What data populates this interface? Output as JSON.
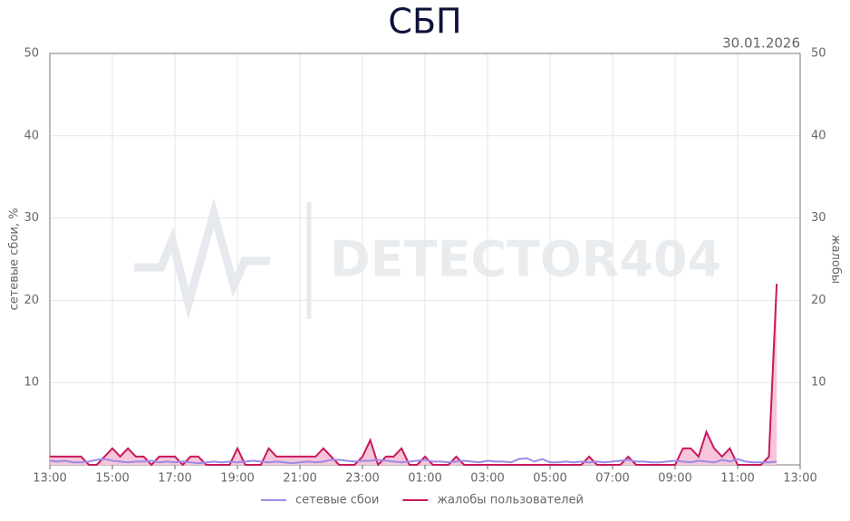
{
  "chart_data": {
    "type": "line",
    "title": "СБП",
    "subtitle": "30.01.2026",
    "watermark": "DETECTOR404",
    "y_label": "сетевые сбои, %",
    "y2_label": "жалобы",
    "x": [
      "13:00",
      "13:15",
      "13:30",
      "13:45",
      "14:00",
      "14:15",
      "14:30",
      "14:45",
      "15:00",
      "15:15",
      "15:30",
      "15:45",
      "16:00",
      "16:15",
      "16:30",
      "16:45",
      "17:00",
      "17:15",
      "17:30",
      "17:45",
      "18:00",
      "18:15",
      "18:30",
      "18:45",
      "19:00",
      "19:15",
      "19:30",
      "19:45",
      "20:00",
      "20:15",
      "20:30",
      "20:45",
      "21:00",
      "21:15",
      "21:30",
      "21:45",
      "22:00",
      "22:15",
      "22:30",
      "22:45",
      "23:00",
      "23:15",
      "23:30",
      "23:45",
      "00:00",
      "00:15",
      "00:30",
      "00:45",
      "01:00",
      "01:15",
      "01:30",
      "01:45",
      "02:00",
      "02:15",
      "02:30",
      "02:45",
      "03:00",
      "03:15",
      "03:30",
      "03:45",
      "04:00",
      "04:15",
      "04:30",
      "04:45",
      "05:00",
      "05:15",
      "05:30",
      "05:45",
      "06:00",
      "06:15",
      "06:30",
      "06:45",
      "07:00",
      "07:15",
      "07:30",
      "07:45",
      "08:00",
      "08:15",
      "08:30",
      "08:45",
      "09:00",
      "09:15",
      "09:30",
      "09:45",
      "10:00",
      "10:15",
      "10:30",
      "10:45",
      "11:00",
      "11:15",
      "11:30",
      "11:45",
      "12:00",
      "12:15"
    ],
    "series": [
      {
        "name": "сетевые сбои",
        "color": "#9b8be8",
        "values": [
          0.5,
          0.4,
          0.5,
          0.3,
          0.3,
          0.4,
          0.6,
          0.7,
          0.5,
          0.4,
          0.3,
          0.4,
          0.4,
          0.5,
          0.3,
          0.4,
          0.3,
          0.4,
          0.3,
          0.2,
          0.3,
          0.4,
          0.3,
          0.4,
          0.3,
          0.4,
          0.5,
          0.4,
          0.3,
          0.4,
          0.3,
          0.2,
          0.3,
          0.4,
          0.3,
          0.4,
          0.6,
          0.6,
          0.5,
          0.4,
          0.5,
          0.5,
          0.6,
          0.5,
          0.4,
          0.3,
          0.4,
          0.5,
          0.6,
          0.4,
          0.4,
          0.3,
          0.4,
          0.5,
          0.4,
          0.3,
          0.5,
          0.4,
          0.4,
          0.3,
          0.7,
          0.8,
          0.4,
          0.7,
          0.3,
          0.3,
          0.4,
          0.3,
          0.4,
          0.3,
          0.4,
          0.3,
          0.4,
          0.5,
          0.6,
          0.4,
          0.4,
          0.3,
          0.3,
          0.4,
          0.5,
          0.4,
          0.3,
          0.5,
          0.4,
          0.3,
          0.6,
          0.4,
          0.7,
          0.4,
          0.3,
          0.3,
          0.3,
          0.4
        ]
      },
      {
        "name": "жалобы пользователей",
        "color": "#c8175d",
        "axis": "y2",
        "fill": "#f7c6da",
        "values": [
          1,
          1,
          1,
          1,
          1,
          0,
          0,
          1,
          2,
          1,
          2,
          1,
          1,
          0,
          1,
          1,
          1,
          0,
          1,
          1,
          0,
          0,
          0,
          0,
          2,
          0,
          0,
          0,
          2,
          1,
          1,
          1,
          1,
          1,
          1,
          2,
          1,
          0,
          0,
          0,
          1,
          3,
          0,
          1,
          1,
          2,
          0,
          0,
          1,
          0,
          0,
          0,
          1,
          0,
          0,
          0,
          0,
          0,
          0,
          0,
          0,
          0,
          0,
          0,
          0,
          0,
          0,
          0,
          0,
          1,
          0,
          0,
          0,
          0,
          1,
          0,
          0,
          0,
          0,
          0,
          0,
          2,
          2,
          1,
          4,
          2,
          1,
          2,
          0,
          0,
          0,
          0,
          1,
          22
        ]
      }
    ],
    "xlim": [
      "13:00",
      "13:00"
    ],
    "xticks": [
      "13:00",
      "15:00",
      "17:00",
      "19:00",
      "21:00",
      "23:00",
      "01:00",
      "03:00",
      "05:00",
      "07:00",
      "09:00",
      "11:00",
      "13:00"
    ],
    "ylim": [
      0,
      50
    ],
    "yticks": [
      10,
      20,
      30,
      40,
      50
    ],
    "y2lim": [
      0,
      50
    ],
    "y2ticks": [
      10,
      20,
      30,
      40,
      50
    ],
    "grid": true,
    "legend": "bottom"
  }
}
